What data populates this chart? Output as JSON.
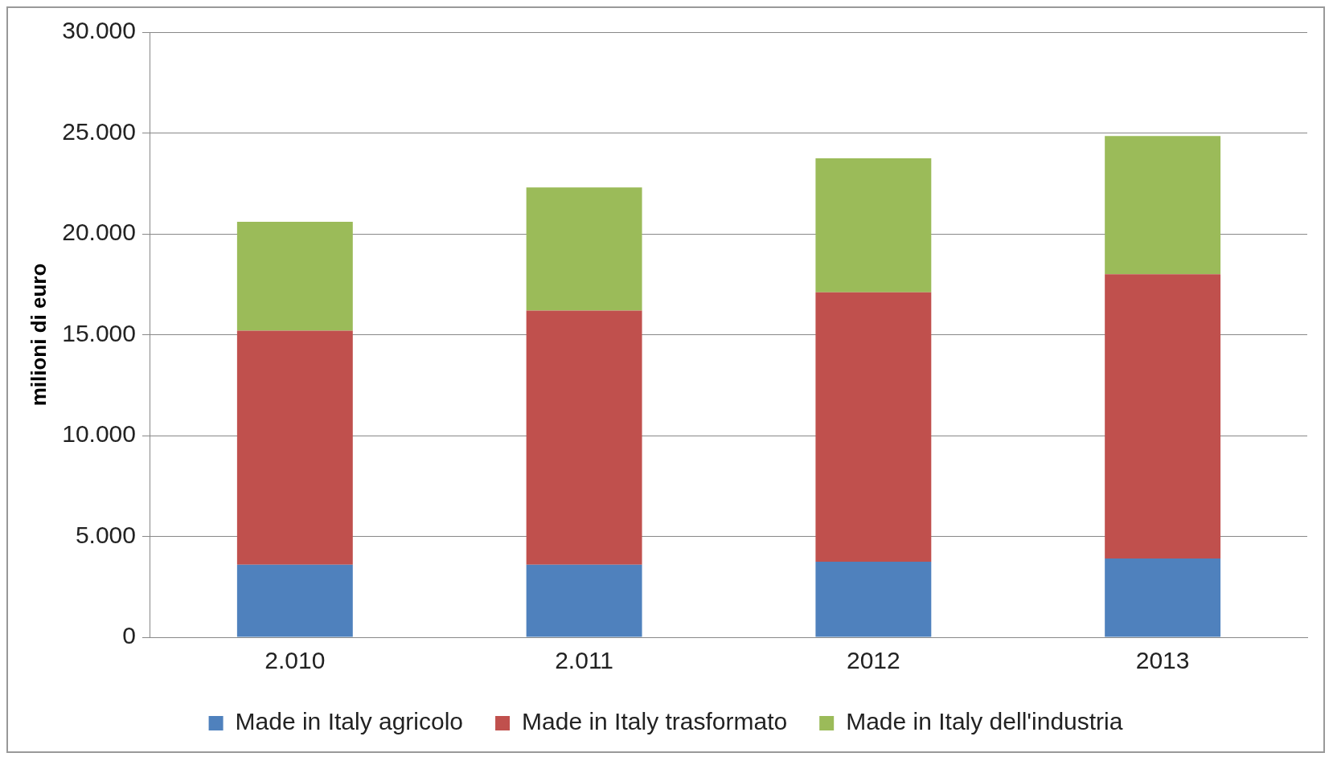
{
  "chart_data": {
    "type": "bar",
    "stacked": true,
    "ylabel": "milioni di euro",
    "categories": [
      "2.010",
      "2.011",
      "2012",
      "2013"
    ],
    "series": [
      {
        "name": "Made in Italy agricolo",
        "color": "#4f81bd",
        "values": [
          3600,
          3600,
          3750,
          3900
        ]
      },
      {
        "name": "Made in Italy trasformato",
        "color": "#c0504d",
        "values": [
          11600,
          12600,
          13350,
          14100
        ]
      },
      {
        "name": "Made in Italy dell'industria",
        "color": "#9bbb59",
        "values": [
          5400,
          6100,
          6650,
          6850
        ]
      }
    ],
    "ylim": [
      0,
      30000
    ],
    "yticks": [
      {
        "value": 0,
        "label": "0"
      },
      {
        "value": 5000,
        "label": "5.000"
      },
      {
        "value": 10000,
        "label": "10.000"
      },
      {
        "value": 15000,
        "label": "15.000"
      },
      {
        "value": 20000,
        "label": "20.000"
      },
      {
        "value": 25000,
        "label": "25.000"
      },
      {
        "value": 30000,
        "label": "30.000"
      }
    ],
    "grid": "y",
    "legend": "bottom"
  }
}
